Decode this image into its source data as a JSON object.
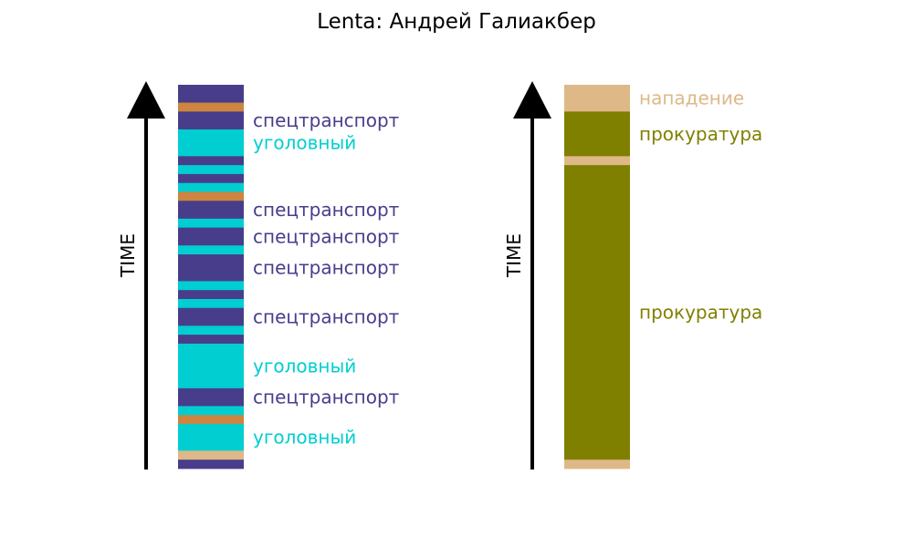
{
  "title": "Lenta: Андрей Галиакбер",
  "chart_data": [
    {
      "type": "timeline-strip",
      "axis_label": "TIME",
      "segments": [
        {
          "color": "#483D8B",
          "weight": 2
        },
        {
          "color": "#CD853F",
          "weight": 1
        },
        {
          "color": "#483D8B",
          "weight": 2
        },
        {
          "color": "#00CED1",
          "weight": 3
        },
        {
          "color": "#483D8B",
          "weight": 1
        },
        {
          "color": "#00CED1",
          "weight": 1
        },
        {
          "color": "#483D8B",
          "weight": 1
        },
        {
          "color": "#00CED1",
          "weight": 1
        },
        {
          "color": "#CD853F",
          "weight": 1
        },
        {
          "color": "#483D8B",
          "weight": 2
        },
        {
          "color": "#00CED1",
          "weight": 1
        },
        {
          "color": "#483D8B",
          "weight": 2
        },
        {
          "color": "#00CED1",
          "weight": 1
        },
        {
          "color": "#483D8B",
          "weight": 3
        },
        {
          "color": "#00CED1",
          "weight": 1
        },
        {
          "color": "#483D8B",
          "weight": 1
        },
        {
          "color": "#00CED1",
          "weight": 1
        },
        {
          "color": "#483D8B",
          "weight": 2
        },
        {
          "color": "#00CED1",
          "weight": 1
        },
        {
          "color": "#483D8B",
          "weight": 1
        },
        {
          "color": "#00CED1",
          "weight": 5
        },
        {
          "color": "#483D8B",
          "weight": 2
        },
        {
          "color": "#00CED1",
          "weight": 1
        },
        {
          "color": "#CD853F",
          "weight": 1
        },
        {
          "color": "#00CED1",
          "weight": 3
        },
        {
          "color": "#DEB887",
          "weight": 1
        },
        {
          "color": "#483D8B",
          "weight": 1
        }
      ],
      "labels": [
        {
          "text": "спецтранспорт",
          "segment": 2,
          "color": "#483D8B"
        },
        {
          "text": "уголовный",
          "segment": 3,
          "color": "#00CED1"
        },
        {
          "text": "спецтранспорт",
          "segment": 9,
          "color": "#483D8B"
        },
        {
          "text": "спецтранспорт",
          "segment": 11,
          "color": "#483D8B"
        },
        {
          "text": "спецтранспорт",
          "segment": 13,
          "color": "#483D8B"
        },
        {
          "text": "спецтранспорт",
          "segment": 17,
          "color": "#483D8B"
        },
        {
          "text": "уголовный",
          "segment": 20,
          "color": "#00CED1"
        },
        {
          "text": "спецтранспорт",
          "segment": 21,
          "color": "#483D8B"
        },
        {
          "text": "уголовный",
          "segment": 24,
          "color": "#00CED1"
        }
      ]
    },
    {
      "type": "timeline-strip",
      "axis_label": "TIME",
      "segments": [
        {
          "color": "#DEB887",
          "weight": 3
        },
        {
          "color": "#808000",
          "weight": 5
        },
        {
          "color": "#DEB887",
          "weight": 1
        },
        {
          "color": "#808000",
          "weight": 33
        },
        {
          "color": "#DEB887",
          "weight": 1
        }
      ],
      "labels": [
        {
          "text": "нападение",
          "segment": 0,
          "color": "#DEB887"
        },
        {
          "text": "прокуратура",
          "segment": 1,
          "color": "#808000"
        },
        {
          "text": "прокуратура",
          "segment": 3,
          "color": "#808000"
        }
      ]
    }
  ]
}
